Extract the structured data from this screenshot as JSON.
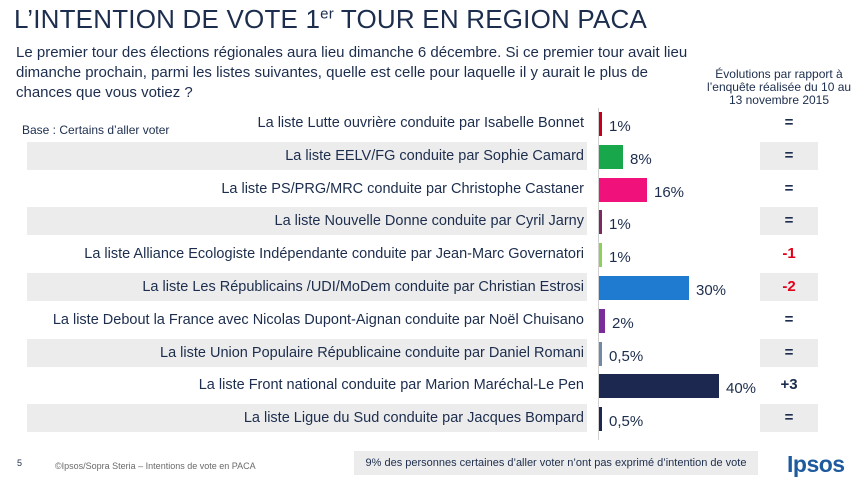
{
  "header": {
    "title_main": "L’INTENTION DE VOTE 1",
    "title_sup": "er",
    "title_rest": " TOUR  EN REGION PACA",
    "subtitle": "Le premier tour des élections régionales aura lieu dimanche 6 décembre. Si ce premier tour avait lieu dimanche prochain, parmi les listes suivantes, quelle est celle pour laquelle il y aurait le plus de chances que vous votiez ?",
    "evolution_header": "Évolutions par rapport à l’enquête réalisée du 10 au 13 novembre 2015",
    "base": "Base : Certains d’aller voter"
  },
  "footer": {
    "page_number": "5",
    "copyright": "©Ipsos/Sopra Steria – Intentions de vote en PACA",
    "note": "9% des personnes certaines d’aller voter n’ont pas exprimé d’intention de vote",
    "logo": "Ipsos"
  },
  "chart_data": {
    "type": "bar",
    "orientation": "horizontal",
    "xlim": [
      0,
      40
    ],
    "categories": [
      "La liste Lutte ouvrière conduite par Isabelle Bonnet",
      "La liste EELV/FG conduite par Sophie Camard",
      "La liste PS/PRG/MRC conduite par Christophe Castaner",
      "La liste Nouvelle Donne conduite par Cyril Jarny",
      "La liste Alliance Ecologiste Indépendante conduite par Jean-Marc Governatori",
      "La liste Les Républicains /UDI/MoDem conduite par Christian Estrosi",
      "La liste Debout la France avec Nicolas Dupont-Aignan conduite par Noël Chuisano",
      "La liste Union Populaire Républicaine conduite par Daniel Romani",
      "La liste Front national conduite par Marion Maréchal-Le Pen",
      "La liste Ligue du Sud conduite par Jacques Bompard"
    ],
    "values": [
      1,
      8,
      16,
      1,
      1,
      30,
      2,
      0.5,
      40,
      0.5
    ],
    "value_labels": [
      "1%",
      "8%",
      "16%",
      "1%",
      "1%",
      "30%",
      "2%",
      "0,5%",
      "40%",
      "0,5%"
    ],
    "evolutions": [
      "=",
      "=",
      "=",
      "=",
      "-1",
      "-2",
      "=",
      "=",
      "+3",
      "="
    ],
    "colors": [
      "#c0001c",
      "#18a84b",
      "#f0117a",
      "#7c2a63",
      "#8ed05a",
      "#1f7bd0",
      "#7a2d9a",
      "#6f8aa8",
      "#1c2850",
      "#1c2850"
    ]
  }
}
